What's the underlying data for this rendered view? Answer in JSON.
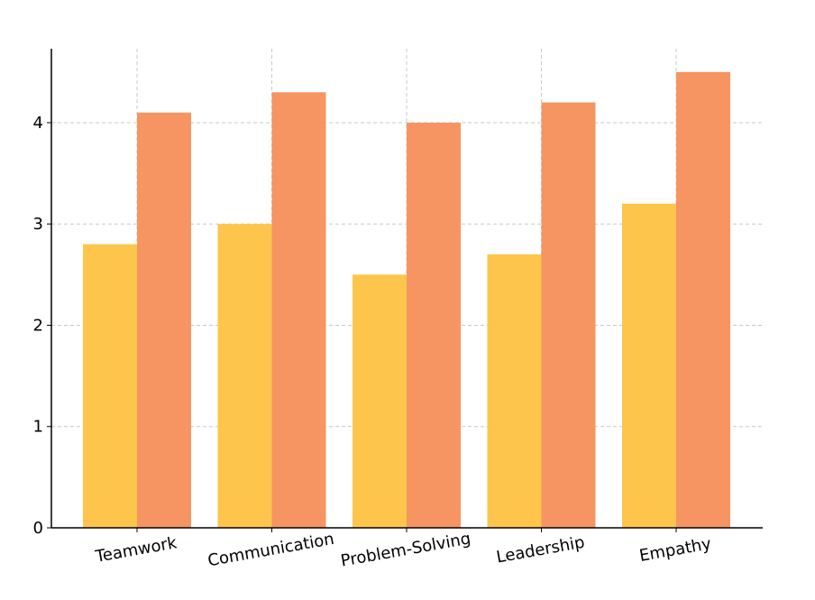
{
  "chart_data": {
    "type": "bar",
    "categories": [
      "Teamwork",
      "Communication",
      "Problem-Solving",
      "Leadership",
      "Empathy"
    ],
    "series": [
      {
        "values": [
          2.8,
          3.0,
          2.5,
          2.7,
          3.2
        ],
        "color": "#FDC54B"
      },
      {
        "values": [
          4.1,
          4.3,
          4.0,
          4.2,
          4.5
        ],
        "color": "#F69462"
      }
    ],
    "yticks": [
      "0",
      "1",
      "2",
      "3",
      "4"
    ],
    "ylim": [
      0,
      4.73
    ],
    "grid": true,
    "legend": "none",
    "title": "",
    "xlabel": "",
    "ylabel": ""
  }
}
